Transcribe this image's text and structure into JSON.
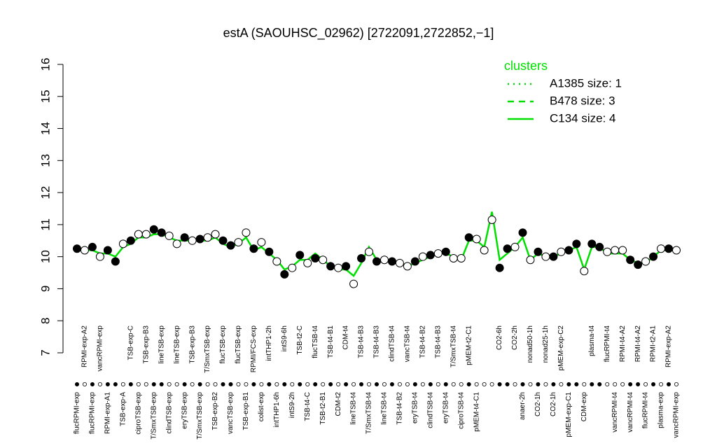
{
  "chart_data": {
    "type": "scatter",
    "title": "estA (SAOUHSC_02962) [2722091,2722852,−1]",
    "categories": [
      "flucRPMI-exp",
      "RPMI-exp-A2",
      "flucRPMI-exp",
      "vancRPMI-exp",
      "RPMI-exp-A1",
      null,
      "TSB-exp-A",
      "TSB-exp-C",
      "ciproTSB-exp",
      "TSB-exp-B3",
      "T/SmxTSB-exp",
      "lineTSB-exp",
      "clindTSB-exp",
      "lineTSB-exp",
      "eryTSB-exp",
      "TSB-exp-B3",
      "T/SmxTSB-exp",
      "T/SmxTSB-exp",
      "TSB-exp-B2",
      "flucTSB-exp",
      "vancTSB-exp",
      "flucTSB-exp",
      "TSB-exp-B1",
      "RPMI/FCS-exp",
      "colist-exp",
      "intTHP1-2h",
      "intTHP1-6h",
      "intS9-6h",
      "intS9-2h",
      "TSB-t2-C",
      "TSB-t4-C",
      "flucTSB-t4",
      "TSB-t2-B1",
      "TSB-t4-B1",
      "CDM-t2",
      "CDM-t4",
      "lineTSB-t4",
      "TSB-t4-B3",
      "T/SmxTSB-t4",
      "TSB-t4-B3",
      "lineTSB-t4",
      "clindTSB-t4",
      "TSB-t4-B2",
      "vancTSB-t4",
      "eryTSB-t4",
      "TSB-t4-B2",
      "clindTSB-t4",
      "TSB-t4-B3",
      "eryTSB-t4",
      "T/SmxTSB-t4",
      "ciproTSB-t4",
      "pMEM-t2-C1",
      "pMEM-t4-C1",
      null,
      null,
      "CO2-6h",
      null,
      "CO2-2h",
      "anaer-2h",
      "nonad50-1h",
      "CO2-1h",
      "nonad25-1h",
      "CO2-1h",
      "pMEM-exp-C2",
      "pMEM-exp-C1",
      null,
      "CDM-exp",
      "plasma-t4",
      null,
      "flucRPMI-t4",
      "vancRPMI-t4",
      "RPMI-t4-A2",
      "vancRPMI-t4",
      "RPMI-t4-A2",
      "flucRPMI-t4",
      "RPMI-t2-A1",
      "plasma-exp",
      "RPMI-exp-A2",
      "vancRPMI-exp"
    ],
    "values": [
      10.25,
      10.2,
      10.3,
      10.0,
      10.2,
      9.85,
      10.4,
      10.5,
      10.7,
      10.7,
      10.85,
      10.75,
      10.65,
      10.4,
      10.6,
      10.5,
      10.55,
      10.6,
      10.7,
      10.5,
      10.35,
      10.45,
      10.75,
      10.25,
      10.45,
      10.15,
      9.85,
      9.45,
      9.65,
      10.05,
      9.8,
      9.95,
      9.9,
      9.7,
      9.65,
      9.7,
      9.15,
      9.95,
      10.15,
      9.85,
      9.9,
      9.85,
      9.8,
      9.7,
      9.85,
      10.0,
      10.05,
      10.1,
      10.15,
      9.95,
      9.95,
      10.6,
      10.55,
      10.2,
      11.15,
      9.65,
      10.25,
      10.3,
      10.75,
      9.9,
      10.15,
      10.0,
      10.0,
      10.15,
      10.2,
      10.4,
      9.55,
      10.4,
      10.3,
      10.15,
      10.2,
      10.2,
      9.9,
      9.75,
      9.85,
      10.0,
      10.25,
      10.25,
      10.2
    ],
    "marker_fills": [
      "#000",
      "#fff",
      "#000",
      "#fff",
      "#000",
      "#000",
      "#fff",
      "#000",
      "#fff",
      "#fff",
      "#000",
      "#000",
      "#fff",
      "#fff",
      "#000",
      "#fff",
      "#000",
      "#fff",
      "#fff",
      "#000",
      "#000",
      "#fff",
      "#fff",
      "#000",
      "#fff",
      "#000",
      "#fff",
      "#000",
      "#fff",
      "#000",
      "#fff",
      "#000",
      "#fff",
      "#000",
      "#fff",
      "#000",
      "#fff",
      "#000",
      "#fff",
      "#000",
      "#fff",
      "#000",
      "#fff",
      "#fff",
      "#000",
      "#fff",
      "#000",
      "#fff",
      "#000",
      "#fff",
      "#fff",
      "#000",
      "#fff",
      "#fff",
      "#fff",
      "#000",
      "#000",
      "#fff",
      "#000",
      "#fff",
      "#000",
      "#fff",
      "#000",
      "#fff",
      "#000",
      "#000",
      "#fff",
      "#000",
      "#000",
      "#fff",
      "#fff",
      "#fff",
      "#000",
      "#000",
      "#fff",
      "#000",
      "#fff",
      "#000",
      "#fff"
    ],
    "legend_title": "clusters",
    "series": [
      {
        "name": "A1385 size: 1",
        "color": "#00e000",
        "dash": "dotted"
      },
      {
        "name": "B478 size: 3",
        "color": "#00e000",
        "dash": "dashed"
      },
      {
        "name": "C134 size: 4",
        "color": "#00e000",
        "dash": "solid",
        "values": [
          10.2,
          10.2,
          10.2,
          10.1,
          10.1,
          10.0,
          10.3,
          10.4,
          10.6,
          10.6,
          10.7,
          10.7,
          10.6,
          10.5,
          10.5,
          10.5,
          10.5,
          10.5,
          10.6,
          10.4,
          10.3,
          10.4,
          10.6,
          10.2,
          10.3,
          10.1,
          9.9,
          9.6,
          9.7,
          9.9,
          9.9,
          10.1,
          9.9,
          9.7,
          9.6,
          9.6,
          9.4,
          9.8,
          10.3,
          9.9,
          9.9,
          9.8,
          9.8,
          9.7,
          9.8,
          9.9,
          10.0,
          10.1,
          10.1,
          10.0,
          9.9,
          10.5,
          10.5,
          10.3,
          11.4,
          9.9,
          10.1,
          10.3,
          10.6,
          9.9,
          10.1,
          10.0,
          10.0,
          10.1,
          10.2,
          10.3,
          9.6,
          10.3,
          10.3,
          10.1,
          10.1,
          10.1,
          9.9,
          9.8,
          9.8,
          10.0,
          10.2,
          10.2,
          10.2
        ]
      }
    ],
    "ylim": [
      7,
      16
    ],
    "yticks": [
      7,
      8,
      9,
      10,
      11,
      12,
      13,
      14,
      15,
      16
    ]
  }
}
